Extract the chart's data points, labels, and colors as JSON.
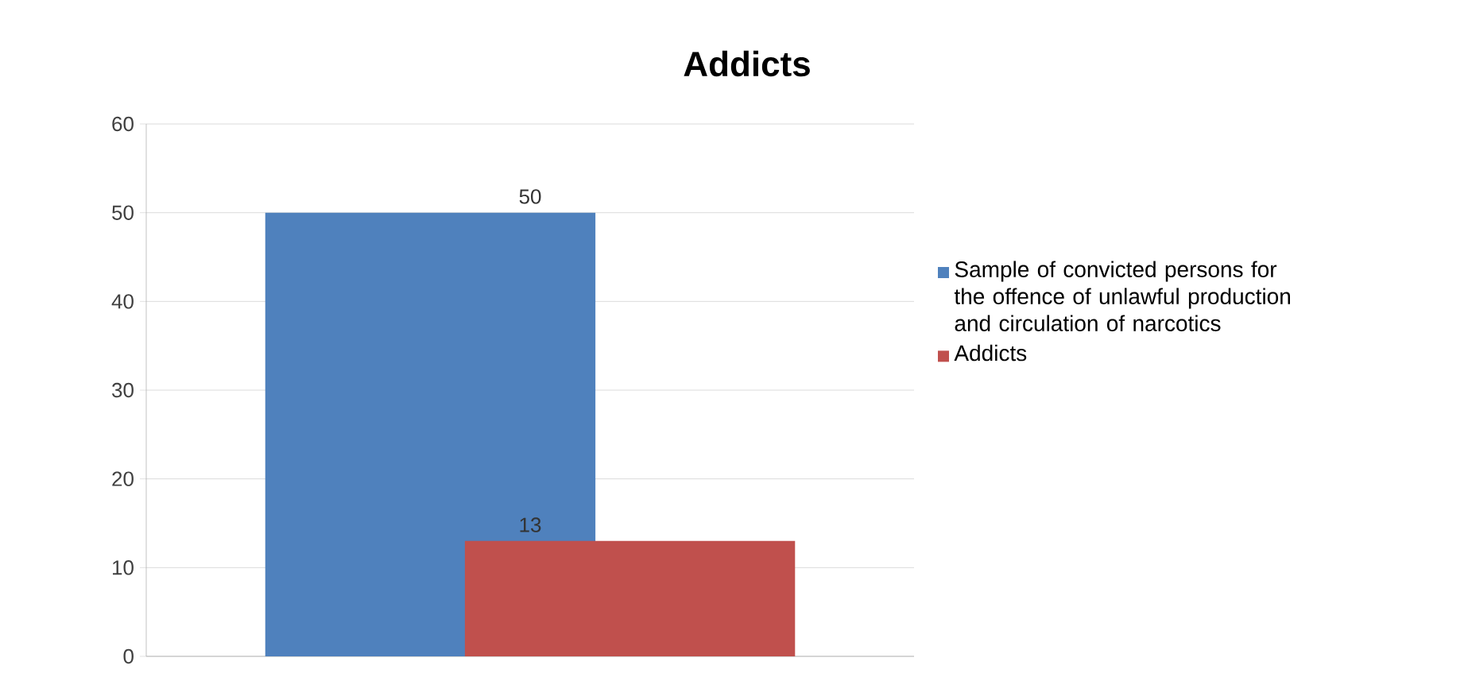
{
  "chart_data": {
    "type": "bar",
    "title": "Addicts",
    "categories": [
      null
    ],
    "series": [
      {
        "name": "Sample of convicted persons for the offence of unlawful production and circulation of narcotics",
        "color": "#4f81bd",
        "values": [
          50
        ]
      },
      {
        "name": "Addicts",
        "color": "#c0504d",
        "values": [
          13
        ]
      }
    ],
    "ylim": [
      0,
      60
    ],
    "yticks": [
      0,
      10,
      20,
      30,
      40,
      50,
      60
    ],
    "grid": "y",
    "legend": "right",
    "data_labels": true
  }
}
